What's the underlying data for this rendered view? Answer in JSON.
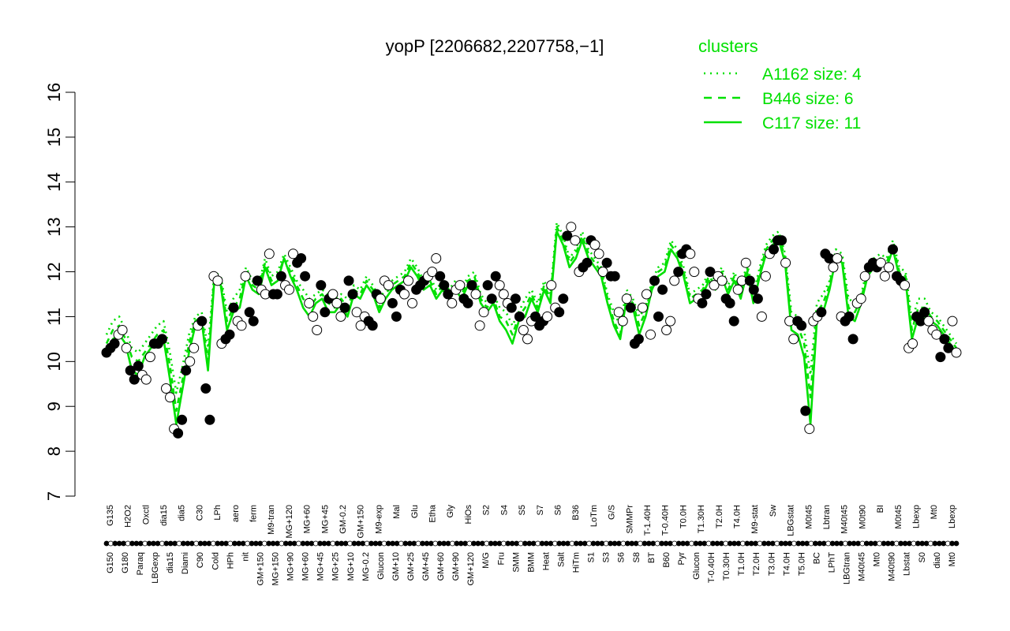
{
  "chart_data": {
    "type": "line",
    "title": "yopP [2206682,2207758,−1]",
    "xlabel": "",
    "ylabel": "",
    "ylim": [
      7,
      16
    ],
    "yticks": [
      "7",
      "8",
      "9",
      "10",
      "11",
      "12",
      "13",
      "14",
      "15",
      "16"
    ],
    "grid": false,
    "legend": {
      "title": "clusters",
      "placement": "top-right",
      "entries": [
        {
          "label": "A1162 size: 4",
          "style": "dotted"
        },
        {
          "label": "B446 size: 6",
          "style": "dashed"
        },
        {
          "label": "C117 size: 11",
          "style": "solid"
        }
      ]
    },
    "colors": {
      "series": "#00e000",
      "points_filled": "#000000",
      "points_open": "#ffffff"
    },
    "conditions_lower": [
      "G150",
      "G180",
      "Paraq",
      "LBGexp",
      "dia15",
      "Diami",
      "C90",
      "Cold",
      "HPh",
      "nit",
      "GM+150",
      "MG+150",
      "MG+90",
      "MG+60",
      "MG+45",
      "MG+25",
      "MG+10",
      "MG-0.2",
      "Glucon",
      "GM+10",
      "GM+25",
      "GM+45",
      "GM+60",
      "GM+90",
      "GM+120",
      "M/G",
      "Fru",
      "SMM",
      "BMM",
      "Heat",
      "Salt",
      "HiTm",
      "S1",
      "S3",
      "S6",
      "S8",
      "BT",
      "B60",
      "Pyr",
      "Glucon",
      "T-0.40H",
      "T0.30H",
      "T1.0H",
      "T2.0H",
      "T3.0H",
      "T4.0H",
      "T5.0H",
      "BC",
      "LPhT",
      "LBGtran",
      "M40t45",
      "Mt0",
      "M40t90",
      "Lbstat",
      "S0",
      "dia0",
      "Mt0"
    ],
    "conditions_upper": [
      "G135",
      "H2O2",
      "Oxctl",
      "dia15",
      "dia5",
      "C30",
      "LPh",
      "aero",
      "ferm",
      "M9-tran",
      "MG+120",
      "MG+60",
      "MG+45",
      "GM-0.2",
      "GM+150",
      "M9-exp",
      "Mal",
      "Glu",
      "Etha",
      "Gly",
      "HiOs",
      "S2",
      "S4",
      "S5",
      "S7",
      "S6",
      "B36",
      "LoTm",
      "G/S",
      "SMMPr",
      "T-1.40H",
      "T-0.40H",
      "T0.0H",
      "T1.30H",
      "T2.0H",
      "T4.0H",
      "M9-stat",
      "Sw",
      "LBGstat",
      "M0t45",
      "Lbtran",
      "M40t45",
      "M0t90",
      "BI",
      "M0t45",
      "Lbexp",
      "Mt0",
      "Lbexp"
    ],
    "series": [
      {
        "name": "C117",
        "values": [
          10.2,
          10.5,
          10.6,
          10.4,
          9.8,
          9.7,
          10.1,
          10.3,
          10.5,
          10.5,
          9.6,
          8.6,
          9.4,
          10.2,
          10.8,
          10.9,
          9.8,
          11.8,
          11.7,
          10.7,
          11.1,
          11.2,
          11.9,
          11.6,
          11.5,
          12.1,
          11.7,
          11.8,
          12.3,
          11.9,
          11.6,
          11.2,
          11.0,
          11.3,
          11.4,
          11.1,
          11.1,
          11.3,
          11.0,
          11.5,
          11.4,
          11.7,
          11.5,
          11.1,
          11.4,
          11.6,
          11.7,
          11.8,
          12.1,
          11.9,
          11.6,
          11.7,
          11.4,
          11.6,
          11.4,
          11.6,
          11.4,
          11.7,
          11.8,
          11.3,
          11.1,
          11.3,
          10.9,
          10.7,
          10.4,
          10.9,
          11.0,
          11.4,
          11.1,
          11.6,
          11.3,
          12.9,
          12.6,
          12.1,
          12.3,
          12.7,
          12.3,
          12.1,
          11.9,
          11.3,
          10.8,
          10.5,
          11.4,
          11.2,
          10.6,
          11.0,
          11.6,
          11.9,
          12.0,
          12.5,
          12.3,
          11.9,
          11.3,
          11.4,
          11.5,
          11.8,
          11.6,
          11.9,
          11.5,
          11.8,
          11.4,
          12.0,
          11.3,
          11.9,
          12.4,
          12.6,
          12.7,
          12.2,
          10.7,
          10.6,
          10.1,
          8.6,
          10.9,
          11.1,
          11.6,
          12.3,
          12.2,
          11.0,
          10.9,
          11.3,
          11.9,
          12.1,
          12.2,
          12.1,
          12.5,
          11.9,
          11.8,
          10.5,
          11.0,
          11.0,
          10.9,
          10.8,
          10.6,
          10.4,
          10.2
        ]
      },
      {
        "name": "B446",
        "values": [
          10.4,
          10.7,
          10.8,
          10.5,
          10.1,
          10.0,
          10.2,
          10.4,
          10.6,
          10.7,
          9.9,
          8.9,
          9.6,
          10.4,
          10.9,
          11.0,
          10.0,
          11.9,
          11.8,
          10.9,
          11.2,
          11.4,
          12.0,
          11.7,
          11.6,
          12.2,
          11.8,
          11.9,
          12.3,
          12.0,
          11.7,
          11.4,
          11.2,
          11.4,
          11.5,
          11.3,
          11.2,
          11.4,
          11.2,
          11.6,
          11.5,
          11.8,
          11.6,
          11.2,
          11.5,
          11.7,
          11.8,
          11.9,
          12.2,
          12.0,
          11.7,
          11.8,
          11.5,
          11.7,
          11.5,
          11.7,
          11.5,
          11.8,
          11.9,
          11.4,
          11.2,
          11.4,
          11.0,
          10.9,
          10.6,
          11.0,
          11.2,
          11.5,
          11.2,
          11.7,
          11.4,
          13.0,
          12.7,
          12.2,
          12.4,
          12.8,
          12.4,
          12.2,
          12.0,
          11.4,
          10.9,
          10.6,
          11.5,
          11.3,
          10.8,
          11.1,
          11.7,
          12.0,
          12.1,
          12.6,
          12.4,
          12.0,
          11.4,
          11.5,
          11.6,
          11.9,
          11.7,
          12.0,
          11.6,
          11.9,
          11.5,
          12.1,
          11.4,
          12.0,
          12.5,
          12.7,
          12.8,
          12.3,
          10.9,
          10.8,
          10.4,
          9.2,
          11.1,
          11.3,
          11.7,
          12.4,
          12.3,
          11.2,
          11.1,
          11.4,
          12.0,
          12.2,
          12.3,
          12.2,
          12.6,
          12.0,
          11.9,
          10.7,
          11.2,
          11.2,
          11.0,
          10.9,
          10.7,
          10.5,
          10.3
        ]
      },
      {
        "name": "A1162",
        "values": [
          10.6,
          10.9,
          11.0,
          10.7,
          10.3,
          10.2,
          10.4,
          10.6,
          10.8,
          10.9,
          10.2,
          9.3,
          9.9,
          10.6,
          11.0,
          11.1,
          10.3,
          12.0,
          11.9,
          11.1,
          11.4,
          11.6,
          12.1,
          11.8,
          11.7,
          12.3,
          11.9,
          12.0,
          12.4,
          12.1,
          11.8,
          11.6,
          11.4,
          11.5,
          11.6,
          11.5,
          11.4,
          11.5,
          11.4,
          11.7,
          11.6,
          11.9,
          11.7,
          11.4,
          11.6,
          11.8,
          11.9,
          12.0,
          12.3,
          12.1,
          11.8,
          11.9,
          11.6,
          11.8,
          11.6,
          11.8,
          11.6,
          11.9,
          12.0,
          11.5,
          11.3,
          11.5,
          11.2,
          11.1,
          10.8,
          11.1,
          11.4,
          11.6,
          11.3,
          11.8,
          11.5,
          13.1,
          12.8,
          12.3,
          12.5,
          12.9,
          12.5,
          12.3,
          12.1,
          11.5,
          11.1,
          10.8,
          11.6,
          11.4,
          11.0,
          11.2,
          11.8,
          12.1,
          12.2,
          12.7,
          12.5,
          12.1,
          11.5,
          11.6,
          11.7,
          12.0,
          11.8,
          12.1,
          11.7,
          12.0,
          11.6,
          12.2,
          11.5,
          12.1,
          12.6,
          12.8,
          12.9,
          12.4,
          11.1,
          11.0,
          10.7,
          9.7,
          11.3,
          11.5,
          11.8,
          12.5,
          12.4,
          11.4,
          11.3,
          11.5,
          12.1,
          12.3,
          12.4,
          12.3,
          12.7,
          12.1,
          12.0,
          10.9,
          11.4,
          11.4,
          11.1,
          11.0,
          10.8,
          10.6,
          10.4
        ]
      }
    ],
    "points": [
      10.2,
      10.3,
      10.4,
      10.6,
      10.7,
      10.3,
      9.8,
      9.6,
      9.9,
      9.7,
      9.6,
      10.1,
      10.4,
      10.4,
      10.5,
      9.4,
      9.2,
      8.5,
      8.4,
      8.7,
      9.8,
      10.0,
      10.3,
      10.8,
      10.9,
      9.4,
      8.7,
      11.9,
      11.8,
      10.4,
      10.5,
      10.6,
      11.2,
      10.9,
      10.8,
      11.9,
      11.1,
      10.9,
      11.8,
      11.6,
      11.5,
      12.4,
      11.5,
      11.5,
      11.9,
      11.7,
      11.6,
      12.4,
      12.2,
      12.3,
      11.9,
      11.3,
      11.0,
      10.7,
      11.7,
      11.1,
      11.4,
      11.5,
      11.3,
      11.0,
      11.2,
      11.8,
      11.5,
      11.1,
      10.8,
      11.0,
      10.9,
      10.8,
      11.5,
      11.4,
      11.8,
      11.7,
      11.3,
      11.0,
      11.6,
      11.5,
      11.8,
      11.3,
      11.6,
      11.7,
      11.8,
      11.9,
      12.0,
      12.3,
      11.9,
      11.7,
      11.5,
      11.3,
      11.6,
      11.7,
      11.4,
      11.3,
      11.7,
      11.5,
      10.8,
      11.1,
      11.7,
      11.4,
      11.9,
      11.7,
      11.5,
      11.3,
      11.2,
      11.4,
      11.0,
      10.7,
      10.5,
      10.9,
      11.0,
      10.8,
      10.9,
      11.0,
      11.7,
      11.2,
      11.1,
      11.4,
      12.8,
      13.0,
      12.7,
      12.0,
      12.1,
      12.2,
      12.7,
      12.6,
      12.4,
      12.0,
      12.2,
      11.9,
      11.9,
      11.1,
      10.9,
      11.4,
      11.2,
      10.4,
      10.5,
      11.2,
      11.5,
      10.6,
      11.8,
      11.0,
      11.6,
      10.7,
      10.9,
      11.8,
      12.0,
      12.4,
      12.5,
      12.4,
      12.0,
      11.4,
      11.3,
      11.5,
      12.0,
      11.7,
      11.9,
      11.8,
      11.4,
      11.3,
      10.9,
      11.6,
      11.8,
      12.2,
      11.8,
      11.6,
      11.4,
      11.0,
      11.9,
      12.4,
      12.5,
      12.7,
      12.7,
      12.2,
      10.9,
      10.5,
      10.9,
      10.8,
      8.9,
      8.5,
      10.9,
      11.0,
      11.1,
      12.4,
      12.3,
      12.1,
      12.3,
      11.0,
      10.9,
      11.0,
      10.5,
      11.3,
      11.4,
      11.9,
      12.1,
      12.2,
      12.1,
      12.2,
      11.9,
      12.1,
      12.5,
      11.9,
      11.8,
      11.7,
      10.3,
      10.4,
      11.0,
      10.9,
      11.1,
      10.9,
      10.7,
      10.6,
      10.1,
      10.5,
      10.3,
      10.9,
      10.2
    ]
  }
}
